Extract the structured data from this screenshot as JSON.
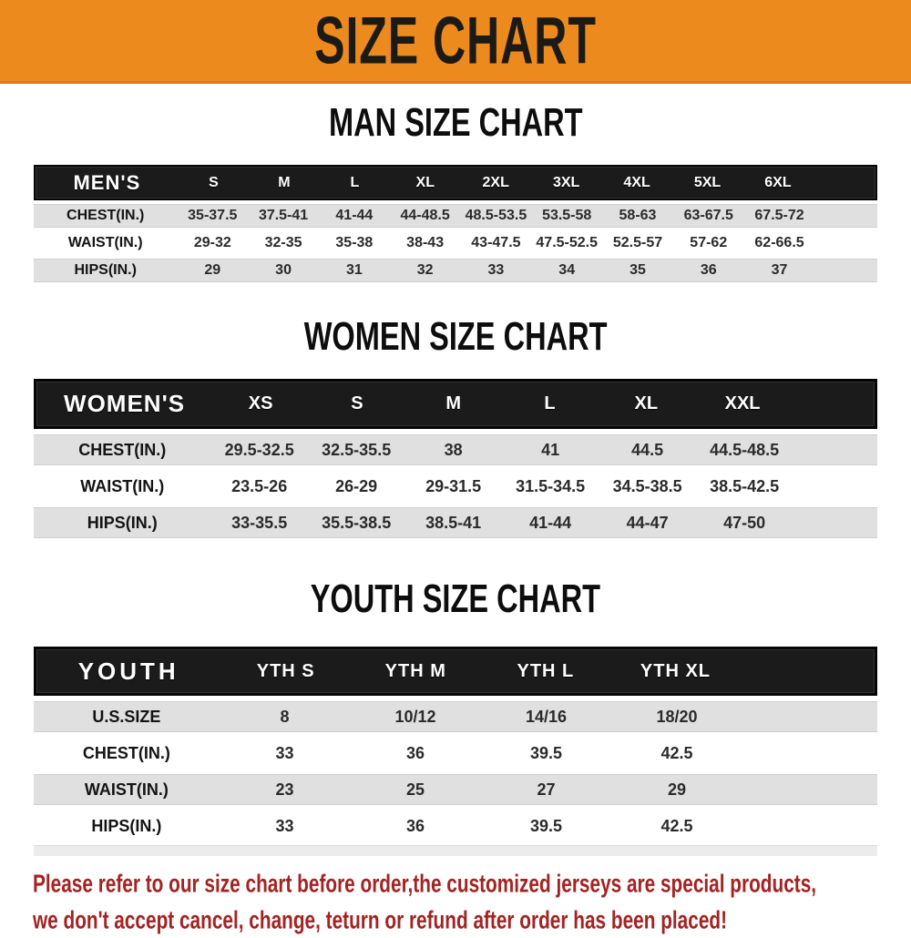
{
  "banner": {
    "title": "SIZE CHART",
    "bg_color": "#ec8a1e",
    "text_color": "#1c1a15"
  },
  "sections": [
    {
      "id": "men",
      "heading": "MAN SIZE CHART",
      "table": {
        "label": "MEN'S",
        "columns": [
          "S",
          "M",
          "L",
          "XL",
          "2XL",
          "3XL",
          "4XL",
          "5XL",
          "6XL"
        ],
        "rows": [
          {
            "label": "CHEST(IN.)",
            "values": [
              "35-37.5",
              "37.5-41",
              "41-44",
              "44-48.5",
              "48.5-53.5",
              "53.5-58",
              "58-63",
              "63-67.5",
              "67.5-72"
            ]
          },
          {
            "label": "WAIST(IN.)",
            "values": [
              "29-32",
              "32-35",
              "35-38",
              "38-43",
              "43-47.5",
              "47.5-52.5",
              "52.5-57",
              "57-62",
              "62-66.5"
            ]
          },
          {
            "label": "HIPS(IN.)",
            "values": [
              "29",
              "30",
              "31",
              "32",
              "33",
              "34",
              "35",
              "36",
              "37"
            ]
          }
        ]
      }
    },
    {
      "id": "women",
      "heading": "WOMEN SIZE CHART",
      "table": {
        "label": "WOMEN'S",
        "columns": [
          "XS",
          "S",
          "M",
          "L",
          "XL",
          "XXL"
        ],
        "rows": [
          {
            "label": "CHEST(IN.)",
            "values": [
              "29.5-32.5",
              "32.5-35.5",
              "38",
              "41",
              "44.5",
              "44.5-48.5"
            ]
          },
          {
            "label": "WAIST(IN.)",
            "values": [
              "23.5-26",
              "26-29",
              "29-31.5",
              "31.5-34.5",
              "34.5-38.5",
              "38.5-42.5"
            ]
          },
          {
            "label": "HIPS(IN.)",
            "values": [
              "33-35.5",
              "35.5-38.5",
              "38.5-41",
              "41-44",
              "44-47",
              "47-50"
            ]
          }
        ]
      }
    },
    {
      "id": "youth",
      "heading": "YOUTH SIZE CHART",
      "table": {
        "label": "YOUTH",
        "columns": [
          "YTH S",
          "YTH M",
          "YTH L",
          "YTH XL"
        ],
        "rows": [
          {
            "label": "U.S.SIZE",
            "values": [
              "8",
              "10/12",
              "14/16",
              "18/20"
            ]
          },
          {
            "label": "CHEST(IN.)",
            "values": [
              "33",
              "36",
              "39.5",
              "42.5"
            ]
          },
          {
            "label": "WAIST(IN.)",
            "values": [
              "23",
              "25",
              "27",
              "29"
            ]
          },
          {
            "label": "HIPS(IN.)",
            "values": [
              "33",
              "36",
              "39.5",
              "42.5"
            ]
          }
        ]
      }
    }
  ],
  "footer": {
    "line1": "Please refer to our size chart before order,the customized jerseys are special products,",
    "line2": "we don't accept cancel, change, teturn or refund after order has been placed!",
    "text_color": "#a32323"
  }
}
